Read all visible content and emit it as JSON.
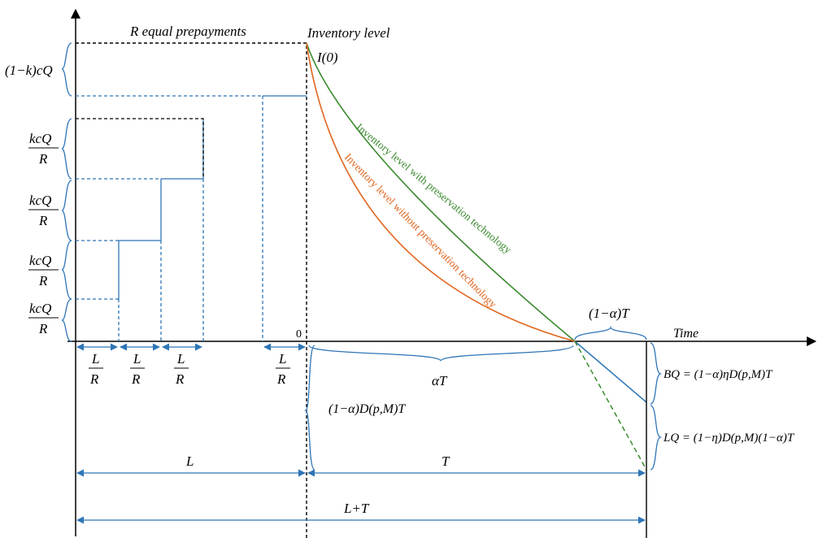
{
  "labels": {
    "prepayments": "R equal prepayments",
    "inventory_level": "Inventory level",
    "i0": "I(0)",
    "time": "Time",
    "origin": "0",
    "k_top": "(1−k)cQ",
    "kcQ": "kcQ",
    "R": "R",
    "L_small": "L",
    "alphaT": "αT",
    "one_minus_alpha_T": "(1−α)T",
    "one_minus_alpha_DT": "(1−α)D(p,M)T",
    "BQ": "BQ = (1−α)ηD(p,M)T",
    "LQ": "LQ = (1−η)D(p,M)(1−α)T",
    "L": "L",
    "T": "T",
    "L_plus_T": "L+T",
    "curve_with": "Inventory level with preservation technology",
    "curve_without": "Inventory level without preservation technology"
  },
  "colors": {
    "axis": "#000000",
    "blue": "#2e75b6",
    "green": "#3a8a2e",
    "orange": "#e0661f"
  }
}
